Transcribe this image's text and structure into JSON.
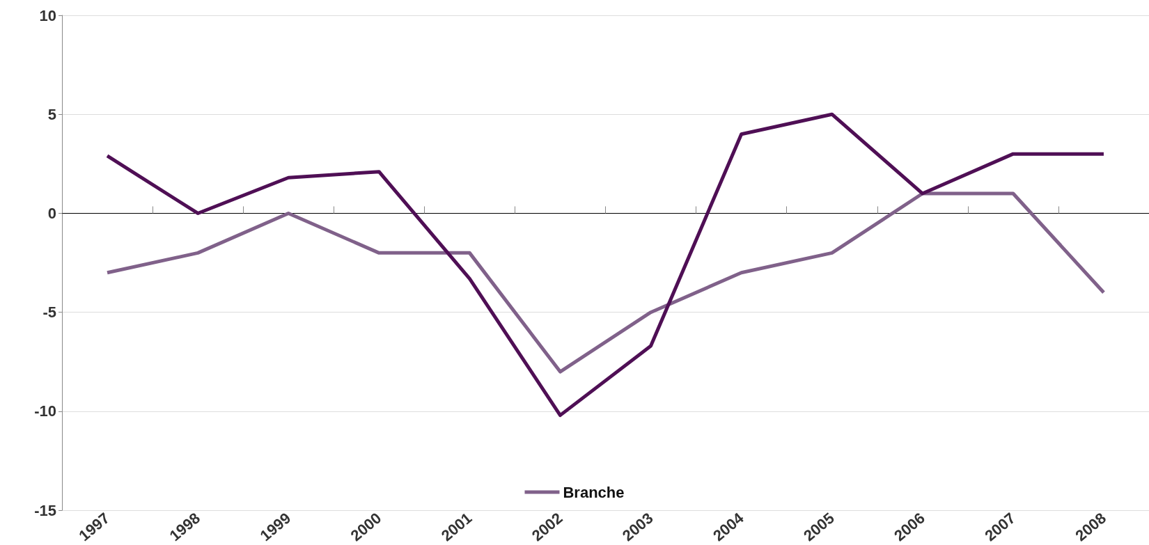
{
  "chart_data": {
    "type": "line",
    "categories": [
      "1997",
      "1998",
      "1999",
      "2000",
      "2001",
      "2002",
      "2003",
      "2004",
      "2005",
      "2006",
      "2007",
      "2008"
    ],
    "series": [
      {
        "name": "Branche",
        "color": "#80618a",
        "values": [
          -3,
          -2,
          0,
          -2,
          -2,
          -8,
          -5,
          -3,
          -2,
          1,
          1,
          -4
        ]
      },
      {
        "color": "#4f0f55",
        "values": [
          2.9,
          0,
          1.8,
          2.1,
          -3.3,
          -10.2,
          -6.7,
          4,
          5,
          1,
          3,
          3
        ]
      }
    ],
    "ylim": [
      -15,
      10
    ],
    "yticks": [
      -15,
      -10,
      -5,
      0,
      5,
      10
    ],
    "grid": "y",
    "legend": "bottom",
    "marker": "none",
    "line_style": "solid"
  }
}
